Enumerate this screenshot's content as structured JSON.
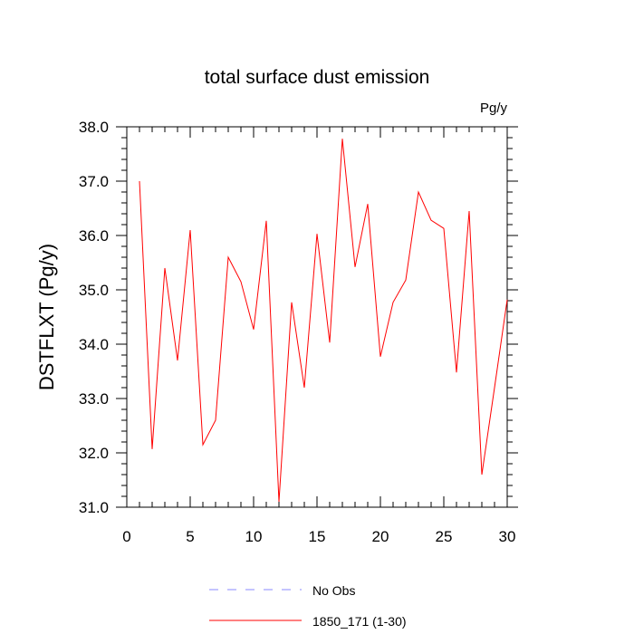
{
  "chart_data": {
    "type": "line",
    "title": "total surface dust emission",
    "units_label": "Pg/y",
    "xlabel": "",
    "ylabel": "DSTFLXT  (Pg/y)",
    "xlim": [
      0,
      30
    ],
    "ylim": [
      31.0,
      38.0
    ],
    "x_ticks": [
      "0",
      "5",
      "10",
      "15",
      "20",
      "25",
      "30"
    ],
    "y_ticks": [
      "31.0",
      "32.0",
      "33.0",
      "34.0",
      "35.0",
      "36.0",
      "37.0",
      "38.0"
    ],
    "grid": false,
    "legend_position": "bottom",
    "series": [
      {
        "name": "1850_171 (1-30)",
        "color": "#ff0000",
        "style": "solid",
        "x": [
          1,
          2,
          3,
          4,
          5,
          6,
          7,
          8,
          9,
          10,
          11,
          12,
          13,
          14,
          15,
          16,
          17,
          18,
          19,
          20,
          21,
          22,
          23,
          24,
          25,
          26,
          27,
          28,
          29,
          30
        ],
        "y": [
          37.0,
          32.07,
          35.4,
          33.7,
          36.1,
          32.15,
          32.6,
          35.6,
          35.15,
          34.27,
          36.27,
          31.1,
          34.77,
          33.2,
          36.03,
          34.03,
          37.78,
          35.42,
          36.58,
          33.77,
          34.77,
          35.18,
          36.8,
          36.28,
          36.13,
          33.48,
          36.45,
          31.6,
          33.2,
          34.82
        ]
      }
    ],
    "legend": [
      {
        "label": "No Obs",
        "color": "#8a8aff",
        "style": "dashed"
      },
      {
        "label": "1850_171 (1-30)",
        "color": "#ff0000",
        "style": "solid"
      }
    ]
  }
}
